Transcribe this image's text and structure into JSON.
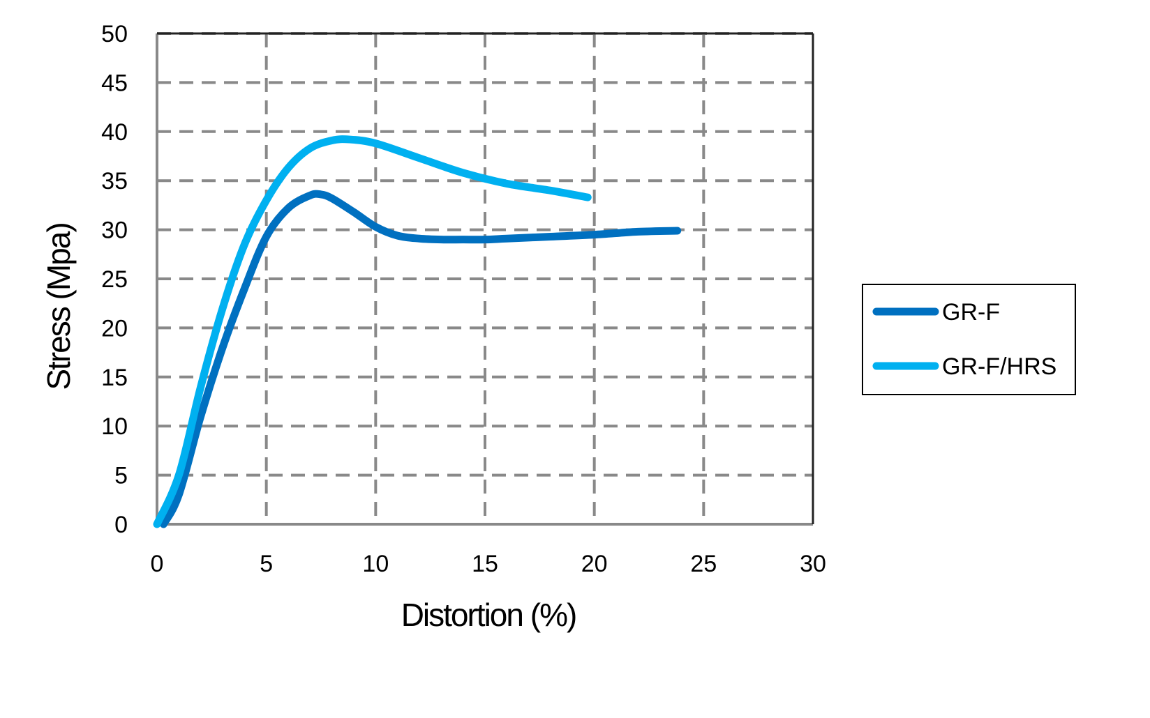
{
  "chart_data": {
    "type": "line",
    "title": "",
    "xlabel": "Distortion (%)",
    "ylabel": "Stress (Mpa)",
    "xlim": [
      0,
      30
    ],
    "ylim": [
      0,
      50
    ],
    "xticks": [
      0,
      5,
      10,
      15,
      20,
      25,
      30
    ],
    "yticks": [
      0,
      5,
      10,
      15,
      20,
      25,
      30,
      35,
      40,
      45,
      50
    ],
    "grid": true,
    "legend_position": "right",
    "series": [
      {
        "name": "GR-F",
        "color": "#0070C0",
        "x": [
          0.3,
          1,
          2,
          3,
          4,
          5,
          6,
          7,
          7.5,
          8,
          9,
          10,
          11,
          12,
          13,
          14,
          15,
          16,
          18,
          20,
          22,
          23.8
        ],
        "y": [
          0,
          3,
          11,
          18,
          24,
          29.3,
          32.2,
          33.5,
          33.6,
          33.2,
          31.8,
          30.3,
          29.4,
          29.1,
          29,
          29,
          29,
          29.1,
          29.3,
          29.5,
          29.8,
          29.9
        ]
      },
      {
        "name": "GR-F/HRS",
        "color": "#00B0F0",
        "x": [
          0,
          1,
          2,
          3,
          4,
          5,
          6,
          7,
          8,
          8.8,
          10,
          12,
          14,
          16,
          18,
          19.7
        ],
        "y": [
          0,
          5,
          14,
          22,
          28.5,
          33,
          36.3,
          38.3,
          39.1,
          39.2,
          38.8,
          37.3,
          35.8,
          34.7,
          34,
          33.3
        ]
      }
    ]
  }
}
